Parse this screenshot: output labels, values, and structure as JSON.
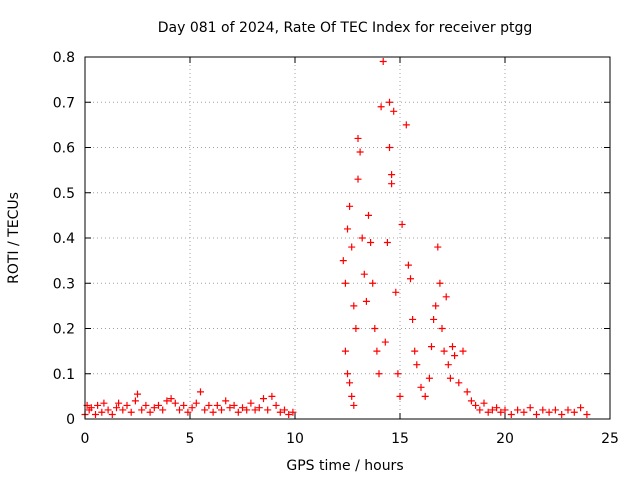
{
  "chart_data": {
    "type": "scatter",
    "title": "Day 081 of 2024, Rate Of TEC Index for receiver ptgg",
    "xlabel": "GPS time / hours",
    "ylabel": "ROTI / TECUs",
    "xlim": [
      0,
      25
    ],
    "ylim": [
      0,
      0.8
    ],
    "xticks": [
      "0",
      "5",
      "10",
      "15",
      "20",
      "25"
    ],
    "yticks": [
      "0",
      "0.1",
      "0.2",
      "0.3",
      "0.4",
      "0.5",
      "0.6",
      "0.7",
      "0.8"
    ],
    "grid": true,
    "marker": "+",
    "color": "#ff0000",
    "series": [
      {
        "name": "",
        "points": [
          [
            0.0,
            0.01
          ],
          [
            0.1,
            0.03
          ],
          [
            0.2,
            0.02
          ],
          [
            0.3,
            0.025
          ],
          [
            0.5,
            0.01
          ],
          [
            0.6,
            0.03
          ],
          [
            0.8,
            0.015
          ],
          [
            0.9,
            0.035
          ],
          [
            1.1,
            0.02
          ],
          [
            1.3,
            0.01
          ],
          [
            1.5,
            0.025
          ],
          [
            1.6,
            0.035
          ],
          [
            1.8,
            0.02
          ],
          [
            2.0,
            0.03
          ],
          [
            2.2,
            0.015
          ],
          [
            2.4,
            0.04
          ],
          [
            2.5,
            0.055
          ],
          [
            2.7,
            0.02
          ],
          [
            2.9,
            0.03
          ],
          [
            3.1,
            0.015
          ],
          [
            3.3,
            0.025
          ],
          [
            3.5,
            0.03
          ],
          [
            3.7,
            0.02
          ],
          [
            3.9,
            0.04
          ],
          [
            4.1,
            0.045
          ],
          [
            4.3,
            0.035
          ],
          [
            4.5,
            0.02
          ],
          [
            4.7,
            0.03
          ],
          [
            4.9,
            0.015
          ],
          [
            5.1,
            0.025
          ],
          [
            5.3,
            0.035
          ],
          [
            5.5,
            0.06
          ],
          [
            5.7,
            0.02
          ],
          [
            5.9,
            0.03
          ],
          [
            6.1,
            0.015
          ],
          [
            6.3,
            0.03
          ],
          [
            6.5,
            0.02
          ],
          [
            6.7,
            0.04
          ],
          [
            6.9,
            0.025
          ],
          [
            7.1,
            0.03
          ],
          [
            7.3,
            0.015
          ],
          [
            7.5,
            0.025
          ],
          [
            7.7,
            0.02
          ],
          [
            7.9,
            0.035
          ],
          [
            8.1,
            0.02
          ],
          [
            8.3,
            0.025
          ],
          [
            8.5,
            0.045
          ],
          [
            8.7,
            0.02
          ],
          [
            8.9,
            0.05
          ],
          [
            9.1,
            0.03
          ],
          [
            9.3,
            0.015
          ],
          [
            9.5,
            0.02
          ],
          [
            9.7,
            0.01
          ],
          [
            9.9,
            0.015
          ],
          [
            12.3,
            0.35
          ],
          [
            12.4,
            0.3
          ],
          [
            12.5,
            0.42
          ],
          [
            12.6,
            0.47
          ],
          [
            12.7,
            0.38
          ],
          [
            12.8,
            0.25
          ],
          [
            12.4,
            0.15
          ],
          [
            12.5,
            0.1
          ],
          [
            12.6,
            0.08
          ],
          [
            12.7,
            0.05
          ],
          [
            12.8,
            0.03
          ],
          [
            12.9,
            0.2
          ],
          [
            13.0,
            0.53
          ],
          [
            13.0,
            0.62
          ],
          [
            13.1,
            0.59
          ],
          [
            13.2,
            0.4
          ],
          [
            13.3,
            0.32
          ],
          [
            13.4,
            0.26
          ],
          [
            13.5,
            0.45
          ],
          [
            13.6,
            0.39
          ],
          [
            13.7,
            0.3
          ],
          [
            13.8,
            0.2
          ],
          [
            13.9,
            0.15
          ],
          [
            14.0,
            0.1
          ],
          [
            14.1,
            0.69
          ],
          [
            14.2,
            0.79
          ],
          [
            14.3,
            0.17
          ],
          [
            14.4,
            0.39
          ],
          [
            14.5,
            0.7
          ],
          [
            14.5,
            0.6
          ],
          [
            14.6,
            0.54
          ],
          [
            14.6,
            0.52
          ],
          [
            14.7,
            0.68
          ],
          [
            14.8,
            0.28
          ],
          [
            14.9,
            0.1
          ],
          [
            15.0,
            0.05
          ],
          [
            15.1,
            0.43
          ],
          [
            15.3,
            0.65
          ],
          [
            15.4,
            0.34
          ],
          [
            15.5,
            0.31
          ],
          [
            15.6,
            0.22
          ],
          [
            15.7,
            0.15
          ],
          [
            15.8,
            0.12
          ],
          [
            16.0,
            0.07
          ],
          [
            16.2,
            0.05
          ],
          [
            16.4,
            0.09
          ],
          [
            16.5,
            0.16
          ],
          [
            16.6,
            0.22
          ],
          [
            16.7,
            0.25
          ],
          [
            16.8,
            0.38
          ],
          [
            16.9,
            0.3
          ],
          [
            17.0,
            0.2
          ],
          [
            17.1,
            0.15
          ],
          [
            17.2,
            0.27
          ],
          [
            17.3,
            0.12
          ],
          [
            17.4,
            0.09
          ],
          [
            17.5,
            0.16
          ],
          [
            17.6,
            0.14
          ],
          [
            17.8,
            0.08
          ],
          [
            18.0,
            0.15
          ],
          [
            18.2,
            0.06
          ],
          [
            18.4,
            0.04
          ],
          [
            18.6,
            0.03
          ],
          [
            18.8,
            0.02
          ],
          [
            19.0,
            0.035
          ],
          [
            19.2,
            0.015
          ],
          [
            19.4,
            0.02
          ],
          [
            19.6,
            0.025
          ],
          [
            19.8,
            0.015
          ],
          [
            20.0,
            0.02
          ],
          [
            20.3,
            0.01
          ],
          [
            20.6,
            0.02
          ],
          [
            20.9,
            0.015
          ],
          [
            21.2,
            0.025
          ],
          [
            21.5,
            0.01
          ],
          [
            21.8,
            0.02
          ],
          [
            22.1,
            0.015
          ],
          [
            22.4,
            0.02
          ],
          [
            22.7,
            0.01
          ],
          [
            23.0,
            0.02
          ],
          [
            23.3,
            0.015
          ],
          [
            23.6,
            0.025
          ],
          [
            23.9,
            0.01
          ]
        ]
      }
    ]
  }
}
